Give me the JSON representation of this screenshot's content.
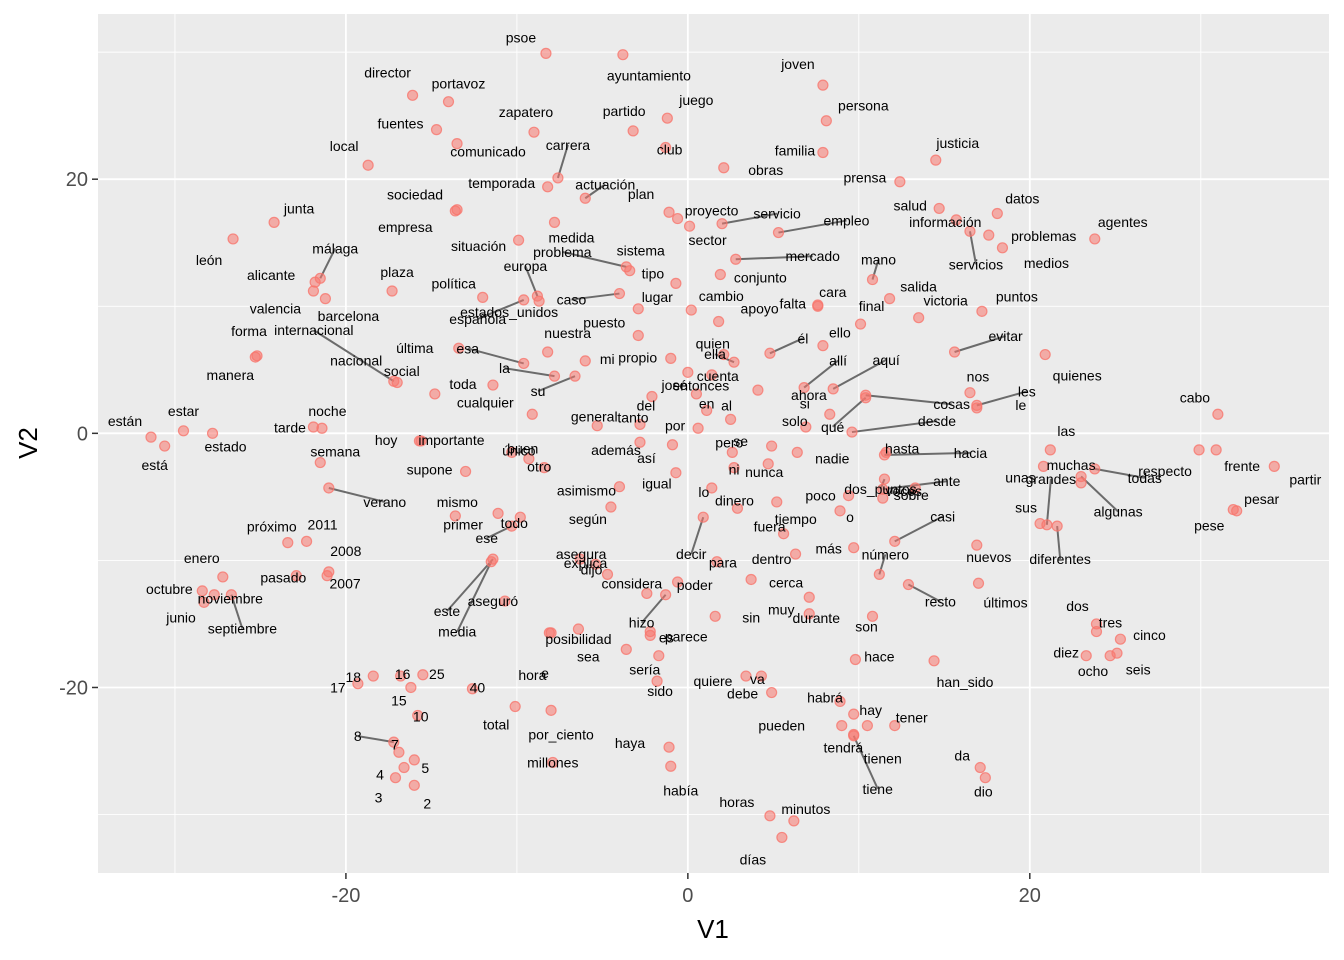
{
  "chart_data": {
    "type": "scatter",
    "title": "",
    "xlabel": "V1",
    "ylabel": "V2",
    "xlim": [
      -34.5,
      37.5
    ],
    "ylim": [
      -34.6,
      33
    ],
    "x_ticks": [
      -20,
      0,
      20
    ],
    "y_ticks": [
      -20,
      0,
      20
    ],
    "grid": true,
    "legend": "none",
    "colors": {
      "panel": "#ebebeb",
      "grid": "#ffffff",
      "point": "#f8766d",
      "label": "#000000",
      "tick_text": "#4d4d4d"
    },
    "points": [
      {
        "label": "psoe",
        "x": -8.3,
        "y": 29.9
      },
      {
        "label": "ayuntamiento",
        "x": -3.8,
        "y": 29.8
      },
      {
        "label": "joven",
        "x": 7.9,
        "y": 27.4
      },
      {
        "label": "director",
        "x": -16.1,
        "y": 26.6
      },
      {
        "label": "portavoz",
        "x": -14,
        "y": 26.1
      },
      {
        "label": "persona",
        "x": 8.1,
        "y": 24.6
      },
      {
        "label": "juego",
        "x": -1.2,
        "y": 24.8
      },
      {
        "label": "fuentes",
        "x": -14.7,
        "y": 23.9
      },
      {
        "label": "zapatero",
        "x": -9,
        "y": 23.7
      },
      {
        "label": "partido",
        "x": -3.2,
        "y": 23.8
      },
      {
        "label": "comunicado",
        "x": -13.5,
        "y": 22.8
      },
      {
        "label": "carrera",
        "x": -7.6,
        "y": 20.1
      },
      {
        "label": "familia",
        "x": 7.9,
        "y": 22.1
      },
      {
        "label": "justicia",
        "x": 14.5,
        "y": 21.5
      },
      {
        "label": "club",
        "x": -1.3,
        "y": 22.5
      },
      {
        "label": "local",
        "x": -18.7,
        "y": 21.1
      },
      {
        "label": "obras",
        "x": 2.1,
        "y": 20.9
      },
      {
        "label": "actuación",
        "x": -6,
        "y": 18.5
      },
      {
        "label": "prensa",
        "x": 12.4,
        "y": 19.8
      },
      {
        "label": "temporada",
        "x": -8.2,
        "y": 19.4
      },
      {
        "label": "sociedad",
        "x": -13.5,
        "y": 17.6
      },
      {
        "label": "medida",
        "x": -7.8,
        "y": 16.6
      },
      {
        "label": "plan",
        "x": -1.1,
        "y": 17.4
      },
      {
        "label": "salud",
        "x": 14.7,
        "y": 17.7
      },
      {
        "label": "datos",
        "x": 18.1,
        "y": 17.3
      },
      {
        "label": "junta",
        "x": -24.2,
        "y": 16.6
      },
      {
        "label": "proyecto",
        "x": -0.6,
        "y": 16.9
      },
      {
        "label": "servicio",
        "x": 2,
        "y": 16.5
      },
      {
        "label": "empleo",
        "x": 5.3,
        "y": 15.8
      },
      {
        "label": "empresa",
        "x": -13.6,
        "y": 17.5
      },
      {
        "label": "información",
        "x": 15.7,
        "y": 16.8
      },
      {
        "label": "agentes",
        "x": 23.8,
        "y": 15.3
      },
      {
        "label": "problemas",
        "x": 17.6,
        "y": 15.6
      },
      {
        "label": "servicios",
        "x": 16.5,
        "y": 15.9
      },
      {
        "label": "sector",
        "x": 0.1,
        "y": 16.3
      },
      {
        "label": "situación",
        "x": -9.9,
        "y": 15.2
      },
      {
        "label": "león",
        "x": -26.6,
        "y": 15.3
      },
      {
        "label": "problema",
        "x": -3.6,
        "y": 13.1
      },
      {
        "label": "sistema",
        "x": -3.4,
        "y": 12.8
      },
      {
        "label": "mercado",
        "x": 2.8,
        "y": 13.7
      },
      {
        "label": "medios",
        "x": 18.4,
        "y": 14.6
      },
      {
        "label": "mano",
        "x": 10.8,
        "y": 12.1
      },
      {
        "label": "conjunto",
        "x": 1.9,
        "y": 12.5
      },
      {
        "label": "málaga",
        "x": -21.5,
        "y": 12.2
      },
      {
        "label": "alicante",
        "x": -21.8,
        "y": 11.9
      },
      {
        "label": "plaza",
        "x": -17.3,
        "y": 11.2
      },
      {
        "label": "tipo",
        "x": -0.7,
        "y": 11.8
      },
      {
        "label": "europa",
        "x": -8.8,
        "y": 10.8
      },
      {
        "label": "valencia",
        "x": -21.2,
        "y": 10.6
      },
      {
        "label": "cara",
        "x": 7.6,
        "y": 10.1
      },
      {
        "label": "salida",
        "x": 11.8,
        "y": 10.6
      },
      {
        "label": "política",
        "x": -12,
        "y": 10.7
      },
      {
        "label": "lugar",
        "x": -2.9,
        "y": 9.8
      },
      {
        "label": "cambio",
        "x": 0.2,
        "y": 9.7
      },
      {
        "label": "caso",
        "x": -4,
        "y": 11
      },
      {
        "label": "barcelona",
        "x": -21.9,
        "y": 11.2
      },
      {
        "label": "española",
        "x": -9.6,
        "y": 10.5
      },
      {
        "label": "estados_unidos",
        "x": -8.7,
        "y": 10.4
      },
      {
        "label": "falta",
        "x": 7.6,
        "y": 10
      },
      {
        "label": "puntos",
        "x": 17.2,
        "y": 9.6
      },
      {
        "label": "final",
        "x": 10.1,
        "y": 8.6
      },
      {
        "label": "victoria",
        "x": 13.5,
        "y": 9.1
      },
      {
        "label": "puesto",
        "x": -2.9,
        "y": 7.7
      },
      {
        "label": "apoyo",
        "x": 1.8,
        "y": 8.8
      },
      {
        "label": "nuestra",
        "x": -8.2,
        "y": 6.4
      },
      {
        "label": "evitar",
        "x": 15.6,
        "y": 6.4
      },
      {
        "label": "forma",
        "x": -25.2,
        "y": 6.1
      },
      {
        "label": "internacional",
        "x": -17.2,
        "y": 4.1
      },
      {
        "label": "esa",
        "x": -9.6,
        "y": 5.5
      },
      {
        "label": "quien",
        "x": 2.1,
        "y": 6.2
      },
      {
        "label": "él",
        "x": 4.8,
        "y": 6.3
      },
      {
        "label": "ello",
        "x": 7.9,
        "y": 6.9
      },
      {
        "label": "última",
        "x": -13.4,
        "y": 6.7
      },
      {
        "label": "propio",
        "x": -1,
        "y": 5.9
      },
      {
        "label": "ella",
        "x": 2.7,
        "y": 5.6
      },
      {
        "label": "la",
        "x": -7.8,
        "y": 4.5
      },
      {
        "label": "mi",
        "x": -6,
        "y": 5.7
      },
      {
        "label": "quienes",
        "x": 20.9,
        "y": 6.2
      },
      {
        "label": "entonces",
        "x": 0,
        "y": 4.8
      },
      {
        "label": "allí",
        "x": 6.8,
        "y": 3.6
      },
      {
        "label": "aquí",
        "x": 8.5,
        "y": 3.5
      },
      {
        "label": "nos",
        "x": 16.5,
        "y": 3.2
      },
      {
        "label": "manera",
        "x": -25.3,
        "y": 6
      },
      {
        "label": "toda",
        "x": -11.4,
        "y": 3.8
      },
      {
        "label": "su",
        "x": -6.6,
        "y": 4.5
      },
      {
        "label": "cuenta",
        "x": 1.4,
        "y": 4.6
      },
      {
        "label": "del",
        "x": -2.1,
        "y": 2.9
      },
      {
        "label": "josé",
        "x": 0.5,
        "y": 3.1
      },
      {
        "label": "nacional",
        "x": -17,
        "y": 4
      },
      {
        "label": "social",
        "x": -14.8,
        "y": 3.1
      },
      {
        "label": "ahora",
        "x": 4.1,
        "y": 3.4
      },
      {
        "label": "qué",
        "x": 10.4,
        "y": 2.8
      },
      {
        "label": "cosas",
        "x": 10.4,
        "y": 3
      },
      {
        "label": "les",
        "x": 16.9,
        "y": 2.2
      },
      {
        "label": "cabo",
        "x": 31,
        "y": 1.5
      },
      {
        "label": "noche",
        "x": -21.9,
        "y": 0.5
      },
      {
        "label": "cualquier",
        "x": -9.1,
        "y": 1.5
      },
      {
        "label": "en",
        "x": 1.1,
        "y": 1.8
      },
      {
        "label": "al",
        "x": 2.5,
        "y": 1.1
      },
      {
        "label": "si",
        "x": 8.3,
        "y": 1.5
      },
      {
        "label": "le",
        "x": 16.9,
        "y": 2
      },
      {
        "label": "general",
        "x": -5.3,
        "y": 0.6
      },
      {
        "label": "tanto",
        "x": -2.8,
        "y": 0.7
      },
      {
        "label": "por",
        "x": 0.6,
        "y": 0.4
      },
      {
        "label": "solo",
        "x": 6.9,
        "y": 0.5
      },
      {
        "label": "desde",
        "x": 9.6,
        "y": 0.1
      },
      {
        "label": "están",
        "x": -31.4,
        "y": -0.3
      },
      {
        "label": "estar",
        "x": -29.5,
        "y": 0.2
      },
      {
        "label": "tarde",
        "x": -21.4,
        "y": 0.4
      },
      {
        "label": "estado",
        "x": -27.8,
        "y": 0
      },
      {
        "label": "hoy",
        "x": -15.6,
        "y": -0.6
      },
      {
        "label": "importante",
        "x": -15.7,
        "y": -0.6
      },
      {
        "label": "se",
        "x": 4.9,
        "y": -1
      },
      {
        "label": "nadie",
        "x": 6.4,
        "y": -1.5
      },
      {
        "label": "hasta",
        "x": 11.6,
        "y": -1.5
      },
      {
        "label": "hacia",
        "x": 11.5,
        "y": -1.7
      },
      {
        "label": "las",
        "x": 21.2,
        "y": -1.3
      },
      {
        "label": "frente",
        "x": 30.9,
        "y": -1.3
      },
      {
        "label": "respecto",
        "x": 29.9,
        "y": -1.3
      },
      {
        "label": "está",
        "x": -30.6,
        "y": -1
      },
      {
        "label": "buen",
        "x": -10.3,
        "y": -1.5
      },
      {
        "label": "además",
        "x": -2.8,
        "y": -0.7
      },
      {
        "label": "así",
        "x": -0.9,
        "y": -0.9
      },
      {
        "label": "pero",
        "x": 2.6,
        "y": -1.5
      },
      {
        "label": "dos_puntos",
        "x": 11.5,
        "y": -3.6
      },
      {
        "label": "unas",
        "x": 20.8,
        "y": -2.6
      },
      {
        "label": "todas",
        "x": 23.8,
        "y": -2.8
      },
      {
        "label": "partir",
        "x": 34.3,
        "y": -2.6
      },
      {
        "label": "semana",
        "x": -21.5,
        "y": -2.3
      },
      {
        "label": "supone",
        "x": -13,
        "y": -3
      },
      {
        "label": "único",
        "x": -9.3,
        "y": -2
      },
      {
        "label": "otro",
        "x": -8.4,
        "y": -2.7
      },
      {
        "label": "ni",
        "x": 2.7,
        "y": -2.7
      },
      {
        "label": "nunca",
        "x": 4.7,
        "y": -2.4
      },
      {
        "label": "igual",
        "x": -0.7,
        "y": -3.1
      },
      {
        "label": "sobre",
        "x": 13.3,
        "y": -4.3
      },
      {
        "label": "ante",
        "x": 11.4,
        "y": -4.4
      },
      {
        "label": "grandes",
        "x": 21,
        "y": -7.2
      },
      {
        "label": "algunas",
        "x": 23,
        "y": -3.4
      },
      {
        "label": "verano",
        "x": -21,
        "y": -4.3
      },
      {
        "label": "asimismo",
        "x": -4,
        "y": -4.2
      },
      {
        "label": "lo",
        "x": 1.4,
        "y": -4.3
      },
      {
        "label": "tiempo",
        "x": 5.2,
        "y": -5.4
      },
      {
        "label": "poco",
        "x": 9.4,
        "y": -4.9
      },
      {
        "label": "veces",
        "x": 11.4,
        "y": -5.1
      },
      {
        "label": "muchas",
        "x": 23,
        "y": -3.9
      },
      {
        "label": "pesar",
        "x": 32.1,
        "y": -6.1
      },
      {
        "label": "mismo",
        "x": -13.6,
        "y": -6.5
      },
      {
        "label": "según",
        "x": -4.5,
        "y": -5.8
      },
      {
        "label": "dinero",
        "x": 2.9,
        "y": -5.9
      },
      {
        "label": "o",
        "x": 8.9,
        "y": -6.1
      },
      {
        "label": "sus",
        "x": 20.6,
        "y": -7.1
      },
      {
        "label": "pese",
        "x": 31.9,
        "y": -6
      },
      {
        "label": "todo",
        "x": -9.8,
        "y": -6.6
      },
      {
        "label": "primer",
        "x": -11.1,
        "y": -6.3
      },
      {
        "label": "ese",
        "x": -10.3,
        "y": -7.3
      },
      {
        "label": "decir",
        "x": 0.9,
        "y": -6.6
      },
      {
        "label": "fuera",
        "x": 5.6,
        "y": -7.9
      },
      {
        "label": "dentro",
        "x": 6.3,
        "y": -9.5
      },
      {
        "label": "casi",
        "x": 12.1,
        "y": -8.5
      },
      {
        "label": "diferentes",
        "x": 21.6,
        "y": -7.3
      },
      {
        "label": "próximo",
        "x": -23.4,
        "y": -8.6
      },
      {
        "label": "2011",
        "x": -22.3,
        "y": -8.5
      },
      {
        "label": "asegura",
        "x": -6.3,
        "y": -9.9
      },
      {
        "label": "más",
        "x": 9.7,
        "y": -9
      },
      {
        "label": "número",
        "x": 11.2,
        "y": -11.1
      },
      {
        "label": "nuevos",
        "x": 16.9,
        "y": -8.8
      },
      {
        "label": "este",
        "x": -11.4,
        "y": -9.9
      },
      {
        "label": "explica",
        "x": -5.4,
        "y": -10.3
      },
      {
        "label": "para",
        "x": 1.7,
        "y": -10.1
      },
      {
        "label": "2008",
        "x": -21,
        "y": -10.9
      },
      {
        "label": "enero",
        "x": -27.2,
        "y": -11.3
      },
      {
        "label": "pasado",
        "x": -22.9,
        "y": -11.2
      },
      {
        "label": "2007",
        "x": -21.1,
        "y": -11.2
      },
      {
        "label": "octubre",
        "x": -28.4,
        "y": -12.4
      },
      {
        "label": "cerca",
        "x": 3.7,
        "y": -11.5
      },
      {
        "label": "resto",
        "x": 12.9,
        "y": -11.9
      },
      {
        "label": "últimos",
        "x": 17,
        "y": -11.8
      },
      {
        "label": "noviembre",
        "x": -27.7,
        "y": -12.7
      },
      {
        "label": "media",
        "x": -11.5,
        "y": -10.1
      },
      {
        "label": "dijo",
        "x": -4.7,
        "y": -11.1
      },
      {
        "label": "poder",
        "x": -0.6,
        "y": -11.7
      },
      {
        "label": "muy",
        "x": 7.1,
        "y": -12.9
      },
      {
        "label": "junio",
        "x": -28.3,
        "y": -13.3
      },
      {
        "label": "septiembre",
        "x": -26.7,
        "y": -12.7
      },
      {
        "label": "aseguró",
        "x": -10.7,
        "y": -13.2
      },
      {
        "label": "considera",
        "x": -2.4,
        "y": -12.6
      },
      {
        "label": "durante",
        "x": 7.1,
        "y": -14.2
      },
      {
        "label": "dos",
        "x": 23.9,
        "y": -15
      },
      {
        "label": "tres",
        "x": 23.9,
        "y": -15.6
      },
      {
        "label": "e",
        "x": -8,
        "y": -15.7
      },
      {
        "label": "posibilidad",
        "x": -6.4,
        "y": -15.4
      },
      {
        "label": "hizo",
        "x": -1.3,
        "y": -12.7
      },
      {
        "label": "sin",
        "x": 1.6,
        "y": -14.4
      },
      {
        "label": "son",
        "x": 10.8,
        "y": -14.4
      },
      {
        "label": "hace",
        "x": 9.8,
        "y": -17.8
      },
      {
        "label": "diez",
        "x": 23.3,
        "y": -17.5
      },
      {
        "label": "cinco",
        "x": 25.3,
        "y": -16.2
      },
      {
        "label": "seis",
        "x": 24.7,
        "y": -17.5
      },
      {
        "label": "hora",
        "x": -8.1,
        "y": -15.7
      },
      {
        "label": "es",
        "x": -2.2,
        "y": -15.9
      },
      {
        "label": "parece",
        "x": -2.2,
        "y": -15.6
      },
      {
        "label": "sea",
        "x": -3.6,
        "y": -17
      },
      {
        "label": "sería",
        "x": -1.7,
        "y": -17.5
      },
      {
        "label": "quiere",
        "x": 3.4,
        "y": -19.1
      },
      {
        "label": "va",
        "x": 4.3,
        "y": -19.1
      },
      {
        "label": "han_sido",
        "x": 14.4,
        "y": -17.9
      },
      {
        "label": "ocho",
        "x": 25.1,
        "y": -17.3
      },
      {
        "label": "18",
        "x": -18.4,
        "y": -19.1
      },
      {
        "label": "16",
        "x": -16.8,
        "y": -19.1
      },
      {
        "label": "25",
        "x": -15.5,
        "y": -19
      },
      {
        "label": "40",
        "x": -12.6,
        "y": -20.1
      },
      {
        "label": "17",
        "x": -19.3,
        "y": -19.7
      },
      {
        "label": "15",
        "x": -16.2,
        "y": -20
      },
      {
        "label": "10",
        "x": -15.8,
        "y": -22.2
      },
      {
        "label": "sido",
        "x": -1.8,
        "y": -19.5
      },
      {
        "label": "debe",
        "x": 4.9,
        "y": -20.4
      },
      {
        "label": "habrá",
        "x": 8.9,
        "y": -21.1
      },
      {
        "label": "hay",
        "x": 9.7,
        "y": -22.1
      },
      {
        "label": "total",
        "x": -10.1,
        "y": -21.5
      },
      {
        "label": "por_ciento",
        "x": -8,
        "y": -21.8
      },
      {
        "label": "pueden",
        "x": 9,
        "y": -23
      },
      {
        "label": "tendrá",
        "x": 10.5,
        "y": -23
      },
      {
        "label": "tener",
        "x": 12.1,
        "y": -23
      },
      {
        "label": "8",
        "x": -17.2,
        "y": -24.3
      },
      {
        "label": "7",
        "x": -16.9,
        "y": -25.1
      },
      {
        "label": "4",
        "x": -16.6,
        "y": -26.3
      },
      {
        "label": "5",
        "x": -16,
        "y": -25.7
      },
      {
        "label": "tienen",
        "x": 9.7,
        "y": -23.7
      },
      {
        "label": "tiene",
        "x": 9.7,
        "y": -23.8
      },
      {
        "label": "haya",
        "x": -1.1,
        "y": -24.7
      },
      {
        "label": "millones",
        "x": -7.9,
        "y": -25.9
      },
      {
        "label": "3",
        "x": -17.1,
        "y": -27.1
      },
      {
        "label": "2",
        "x": -16,
        "y": -27.7
      },
      {
        "label": "había",
        "x": -1,
        "y": -26.2
      },
      {
        "label": "da",
        "x": 17.1,
        "y": -26.3
      },
      {
        "label": "dio",
        "x": 17.4,
        "y": -27.1
      },
      {
        "label": "horas",
        "x": 4.8,
        "y": -30.1
      },
      {
        "label": "minutos",
        "x": 6.2,
        "y": -30.5
      },
      {
        "label": "días",
        "x": 5.5,
        "y": -31.8
      }
    ]
  }
}
